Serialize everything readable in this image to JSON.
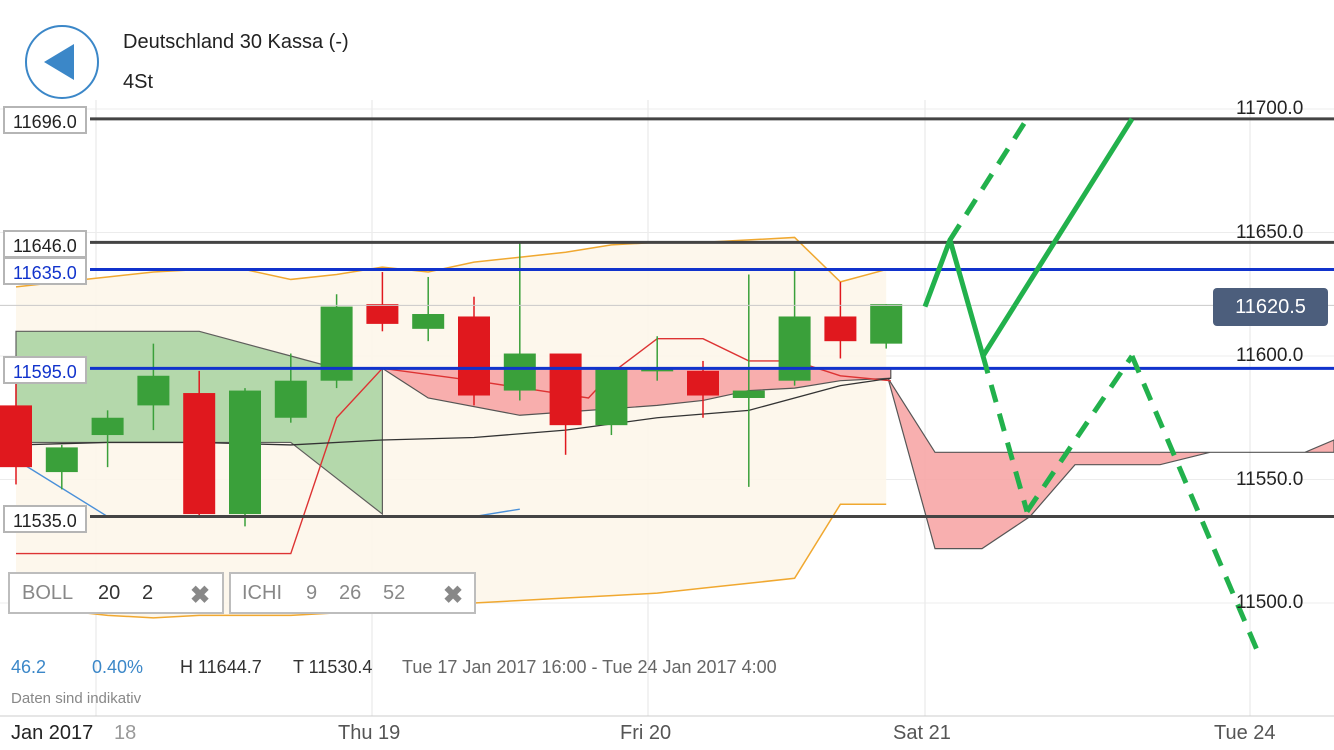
{
  "header": {
    "title": "Deutschland 30 Kassa (-)",
    "timeframe": "4St"
  },
  "price_tags": [
    "11696.0",
    "11646.0",
    "11635.0",
    "11595.0",
    "11535.0"
  ],
  "current_price": "11620.5",
  "indicators": [
    {
      "name": "BOLL",
      "params": [
        "20",
        "2"
      ]
    },
    {
      "name": "ICHI",
      "params": [
        "9",
        "26",
        "52"
      ]
    }
  ],
  "stats": {
    "a": "46.2",
    "b": "0.40%",
    "high": "H 11644.7",
    "low": "T 11530.4",
    "range": "Tue 17 Jan 2017 16:00 - Tue 24 Jan 2017 4:00"
  },
  "note": "Daten sind indikativ",
  "colors": {
    "bull": "#3aa03a",
    "bear": "#e0181e",
    "blue": "#1133cc",
    "boll": "#f0a830",
    "forecast": "#22b14c",
    "cloud_bull": "#a8d3a0",
    "cloud_bear": "#f8a7a7"
  },
  "chart_data": {
    "type": "candlestick",
    "title": "Deutschland 30 Kassa (-)",
    "timeframe": "4St",
    "x_ticks": [
      "Jan 2017",
      "18",
      "Thu 19",
      "Fri 20",
      "Sat 21",
      "Tue 24"
    ],
    "y_ticks": [
      11500.0,
      11550.0,
      11600.0,
      11650.0,
      11700.0
    ],
    "y_tick_labels": [
      "11500.0",
      "11550.0",
      "11600.0",
      "11650.0",
      "11700.0"
    ],
    "ylim": [
      11480,
      11730
    ],
    "horizontal_levels": [
      {
        "label": "11696.0",
        "value": 11696.0,
        "color": "#444444"
      },
      {
        "label": "11646.0",
        "value": 11646.0,
        "color": "#444444"
      },
      {
        "label": "11635.0",
        "value": 11635.0,
        "color": "#1133cc"
      },
      {
        "label": "11595.0",
        "value": 11595.0,
        "color": "#1133cc"
      },
      {
        "label": "11535.0",
        "value": 11535.0,
        "color": "#444444"
      }
    ],
    "candles": [
      {
        "o": 11580,
        "h": 11590,
        "l": 11548,
        "c": 11555
      },
      {
        "o": 11553,
        "h": 11564,
        "l": 11546,
        "c": 11563
      },
      {
        "o": 11568,
        "h": 11578,
        "l": 11555,
        "c": 11575
      },
      {
        "o": 11580,
        "h": 11605,
        "l": 11570,
        "c": 11592
      },
      {
        "o": 11585,
        "h": 11594,
        "l": 11535,
        "c": 11536
      },
      {
        "o": 11536,
        "h": 11587,
        "l": 11531,
        "c": 11586
      },
      {
        "o": 11575,
        "h": 11601,
        "l": 11573,
        "c": 11590
      },
      {
        "o": 11590,
        "h": 11625,
        "l": 11587,
        "c": 11620
      },
      {
        "o": 11621,
        "h": 11634,
        "l": 11610,
        "c": 11613
      },
      {
        "o": 11611,
        "h": 11632,
        "l": 11606,
        "c": 11617
      },
      {
        "o": 11616,
        "h": 11624,
        "l": 11580,
        "c": 11584
      },
      {
        "o": 11586,
        "h": 11646,
        "l": 11582,
        "c": 11601
      },
      {
        "o": 11601,
        "h": 11600,
        "l": 11560,
        "c": 11572
      },
      {
        "o": 11572,
        "h": 11595,
        "l": 11568,
        "c": 11595
      },
      {
        "o": 11595,
        "h": 11608,
        "l": 11590,
        "c": 11595
      },
      {
        "o": 11594,
        "h": 11598,
        "l": 11575,
        "c": 11584
      },
      {
        "o": 11583,
        "h": 11633,
        "l": 11547,
        "c": 11586
      },
      {
        "o": 11590,
        "h": 11635,
        "l": 11588,
        "c": 11616
      },
      {
        "o": 11616,
        "h": 11630,
        "l": 11599,
        "c": 11606
      },
      {
        "o": 11605,
        "h": 11621,
        "l": 11603,
        "c": 11621
      }
    ],
    "bollinger": {
      "upper": [
        11628,
        11630,
        11632,
        11634,
        11635,
        11635,
        11631,
        11633,
        11636,
        11634,
        11638,
        11640,
        11642,
        11645,
        11646,
        11646,
        11647,
        11648,
        11630,
        11635
      ],
      "lower": [
        11497,
        11497,
        11495,
        11494,
        11495,
        11495,
        11495,
        11496,
        11497,
        11498,
        11500,
        11501,
        11502,
        11503,
        11504,
        11506,
        11508,
        11510,
        11540,
        11540
      ]
    },
    "current_price": 11620.5,
    "forecast_paths": [
      {
        "style": "solid",
        "points": [
          [
            0,
            11620
          ],
          [
            1,
            11647
          ],
          [
            2,
            11600
          ],
          [
            5,
            11696
          ]
        ]
      },
      {
        "style": "dashed",
        "points": [
          [
            1,
            11647
          ],
          [
            3,
            11696
          ]
        ]
      },
      {
        "style": "dashed",
        "points": [
          [
            2,
            11600
          ],
          [
            3,
            11537
          ]
        ]
      },
      {
        "style": "dashed",
        "points": [
          [
            3,
            11537
          ],
          [
            5,
            11600
          ]
        ]
      },
      {
        "style": "dashed",
        "points": [
          [
            5,
            11600
          ],
          [
            7,
            11480
          ]
        ]
      }
    ]
  }
}
